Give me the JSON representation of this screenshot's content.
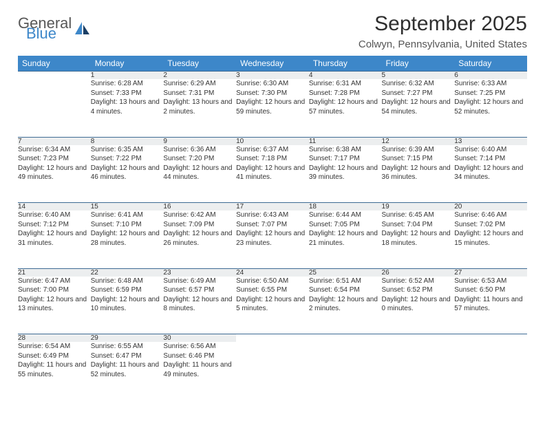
{
  "logo": {
    "word1": "General",
    "word2": "Blue"
  },
  "title": "September 2025",
  "location": "Colwyn, Pennsylvania, United States",
  "colors": {
    "header_bg": "#3d87c9",
    "header_fg": "#ffffff",
    "daynum_bg": "#eceeef",
    "row_divider": "#3d6a93",
    "text": "#333333"
  },
  "weekdays": [
    "Sunday",
    "Monday",
    "Tuesday",
    "Wednesday",
    "Thursday",
    "Friday",
    "Saturday"
  ],
  "weeks": [
    [
      null,
      {
        "n": "1",
        "sunrise": "6:28 AM",
        "sunset": "7:33 PM",
        "daylight": "13 hours and 4 minutes."
      },
      {
        "n": "2",
        "sunrise": "6:29 AM",
        "sunset": "7:31 PM",
        "daylight": "13 hours and 2 minutes."
      },
      {
        "n": "3",
        "sunrise": "6:30 AM",
        "sunset": "7:30 PM",
        "daylight": "12 hours and 59 minutes."
      },
      {
        "n": "4",
        "sunrise": "6:31 AM",
        "sunset": "7:28 PM",
        "daylight": "12 hours and 57 minutes."
      },
      {
        "n": "5",
        "sunrise": "6:32 AM",
        "sunset": "7:27 PM",
        "daylight": "12 hours and 54 minutes."
      },
      {
        "n": "6",
        "sunrise": "6:33 AM",
        "sunset": "7:25 PM",
        "daylight": "12 hours and 52 minutes."
      }
    ],
    [
      {
        "n": "7",
        "sunrise": "6:34 AM",
        "sunset": "7:23 PM",
        "daylight": "12 hours and 49 minutes."
      },
      {
        "n": "8",
        "sunrise": "6:35 AM",
        "sunset": "7:22 PM",
        "daylight": "12 hours and 46 minutes."
      },
      {
        "n": "9",
        "sunrise": "6:36 AM",
        "sunset": "7:20 PM",
        "daylight": "12 hours and 44 minutes."
      },
      {
        "n": "10",
        "sunrise": "6:37 AM",
        "sunset": "7:18 PM",
        "daylight": "12 hours and 41 minutes."
      },
      {
        "n": "11",
        "sunrise": "6:38 AM",
        "sunset": "7:17 PM",
        "daylight": "12 hours and 39 minutes."
      },
      {
        "n": "12",
        "sunrise": "6:39 AM",
        "sunset": "7:15 PM",
        "daylight": "12 hours and 36 minutes."
      },
      {
        "n": "13",
        "sunrise": "6:40 AM",
        "sunset": "7:14 PM",
        "daylight": "12 hours and 34 minutes."
      }
    ],
    [
      {
        "n": "14",
        "sunrise": "6:40 AM",
        "sunset": "7:12 PM",
        "daylight": "12 hours and 31 minutes."
      },
      {
        "n": "15",
        "sunrise": "6:41 AM",
        "sunset": "7:10 PM",
        "daylight": "12 hours and 28 minutes."
      },
      {
        "n": "16",
        "sunrise": "6:42 AM",
        "sunset": "7:09 PM",
        "daylight": "12 hours and 26 minutes."
      },
      {
        "n": "17",
        "sunrise": "6:43 AM",
        "sunset": "7:07 PM",
        "daylight": "12 hours and 23 minutes."
      },
      {
        "n": "18",
        "sunrise": "6:44 AM",
        "sunset": "7:05 PM",
        "daylight": "12 hours and 21 minutes."
      },
      {
        "n": "19",
        "sunrise": "6:45 AM",
        "sunset": "7:04 PM",
        "daylight": "12 hours and 18 minutes."
      },
      {
        "n": "20",
        "sunrise": "6:46 AM",
        "sunset": "7:02 PM",
        "daylight": "12 hours and 15 minutes."
      }
    ],
    [
      {
        "n": "21",
        "sunrise": "6:47 AM",
        "sunset": "7:00 PM",
        "daylight": "12 hours and 13 minutes."
      },
      {
        "n": "22",
        "sunrise": "6:48 AM",
        "sunset": "6:59 PM",
        "daylight": "12 hours and 10 minutes."
      },
      {
        "n": "23",
        "sunrise": "6:49 AM",
        "sunset": "6:57 PM",
        "daylight": "12 hours and 8 minutes."
      },
      {
        "n": "24",
        "sunrise": "6:50 AM",
        "sunset": "6:55 PM",
        "daylight": "12 hours and 5 minutes."
      },
      {
        "n": "25",
        "sunrise": "6:51 AM",
        "sunset": "6:54 PM",
        "daylight": "12 hours and 2 minutes."
      },
      {
        "n": "26",
        "sunrise": "6:52 AM",
        "sunset": "6:52 PM",
        "daylight": "12 hours and 0 minutes."
      },
      {
        "n": "27",
        "sunrise": "6:53 AM",
        "sunset": "6:50 PM",
        "daylight": "11 hours and 57 minutes."
      }
    ],
    [
      {
        "n": "28",
        "sunrise": "6:54 AM",
        "sunset": "6:49 PM",
        "daylight": "11 hours and 55 minutes."
      },
      {
        "n": "29",
        "sunrise": "6:55 AM",
        "sunset": "6:47 PM",
        "daylight": "11 hours and 52 minutes."
      },
      {
        "n": "30",
        "sunrise": "6:56 AM",
        "sunset": "6:46 PM",
        "daylight": "11 hours and 49 minutes."
      },
      null,
      null,
      null,
      null
    ]
  ],
  "labels": {
    "sunrise": "Sunrise: ",
    "sunset": "Sunset: ",
    "daylight": "Daylight: "
  }
}
